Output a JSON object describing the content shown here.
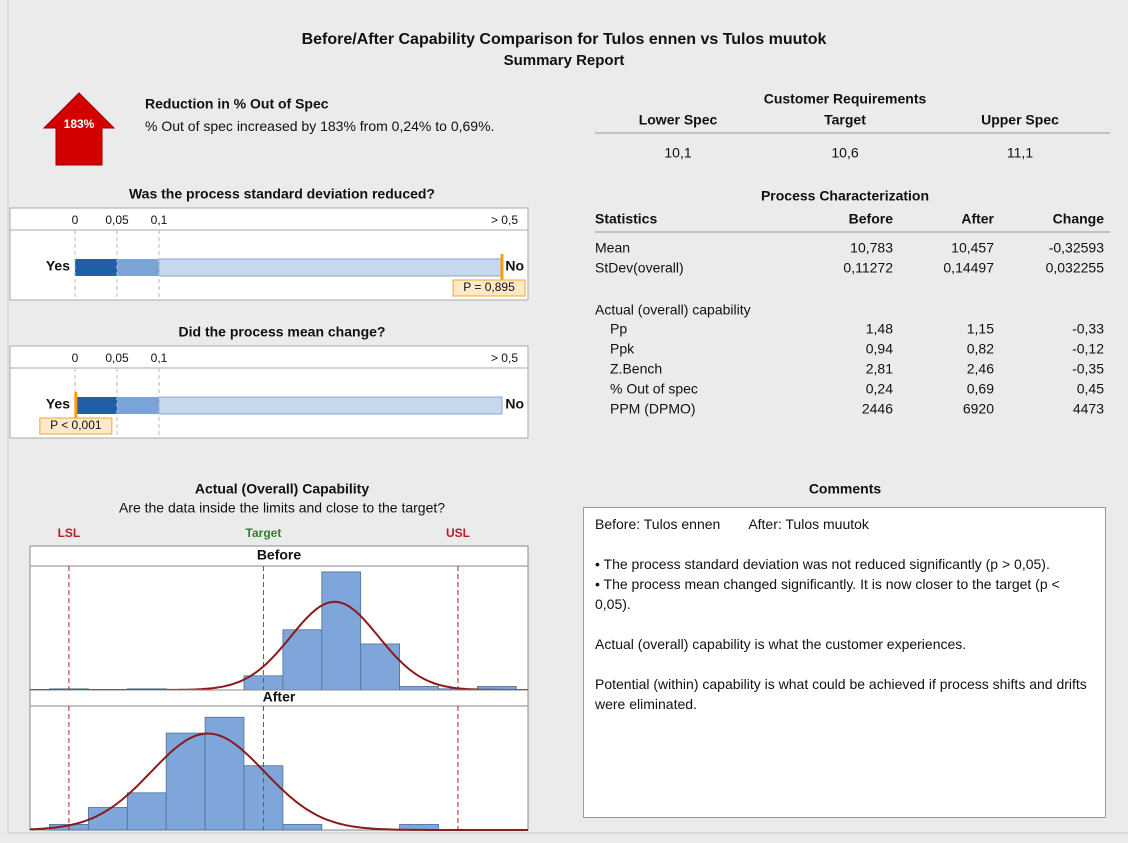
{
  "title": "Before/After Capability Comparison for Tulos ennen  vs Tulos muutok",
  "subtitle": "Summary Report",
  "reduction": {
    "badge": "183%",
    "heading": "Reduction in % Out of Spec",
    "text": "% Out of spec increased by 183% from 0,24% to 0,69%."
  },
  "requirements": {
    "title": "Customer Requirements",
    "headers": [
      "Lower Spec",
      "Target",
      "Upper Spec"
    ],
    "values": [
      "10,1",
      "10,6",
      "11,1"
    ]
  },
  "tests": [
    {
      "question": "Was the process standard deviation reduced?",
      "ticks": [
        0,
        {
          "value": 0.05,
          "label": "0,05"
        },
        {
          "value": 0.1,
          "label": "0,1"
        },
        {
          "value": 0.5,
          "label": "> 0,5"
        }
      ],
      "yes": "Yes",
      "no": "No",
      "p": {
        "value": 0.895,
        "label": "P = 0,895"
      }
    },
    {
      "question": "Did the process mean change?",
      "ticks": [
        0,
        {
          "value": 0.05,
          "label": "0,05"
        },
        {
          "value": 0.1,
          "label": "0,1"
        },
        {
          "value": 0.5,
          "label": "> 0,5"
        }
      ],
      "yes": "Yes",
      "no": "No",
      "p": {
        "value": 0.001,
        "label": "P < 0,001"
      }
    }
  ],
  "process": {
    "title": "Process Characterization",
    "header": [
      "Statistics",
      "Before",
      "After",
      "Change"
    ],
    "rows": [
      [
        "Mean",
        "10,783",
        "10,457",
        "-0,32593"
      ],
      [
        "StDev(overall)",
        "0,11272",
        "0,14497",
        "0,032255"
      ]
    ],
    "section": "Actual (overall) capability",
    "capability_rows": [
      [
        "Pp",
        "1,48",
        "1,15",
        "-0,33"
      ],
      [
        "Ppk",
        "0,94",
        "0,82",
        "-0,12"
      ],
      [
        "Z.Bench",
        "2,81",
        "2,46",
        "-0,35"
      ],
      [
        "% Out of spec",
        "0,24",
        "0,69",
        "0,45"
      ],
      [
        "PPM (DPMO)",
        "2446",
        "6920",
        "4473"
      ]
    ]
  },
  "comments": {
    "title": "Comments",
    "before": "Before: Tulos ennen",
    "after": "After: Tulos muutok",
    "bullets": [
      "• The process standard deviation was not reduced significantly (p > 0,05).",
      "• The process mean changed significantly. It is now closer to the target (p < 0,05)."
    ],
    "notes": [
      "Actual (overall) capability is what the customer experiences.",
      "Potential (within) capability is what could be achieved if process shifts and drifts were eliminated."
    ]
  },
  "chart_data": {
    "type": "histogram",
    "title": "Actual (Overall) Capability",
    "subtitle": "Are the data inside the limits and close to the target?",
    "xlim": [
      10.0,
      11.28
    ],
    "limits": [
      {
        "label": "LSL",
        "value": 10.1,
        "color": "#b22222"
      },
      {
        "label": "Target",
        "value": 10.6,
        "color": "#2e7d32"
      },
      {
        "label": "USL",
        "value": 11.1,
        "color": "#b22222"
      }
    ],
    "bins": [
      10.05,
      10.15,
      10.25,
      10.35,
      10.45,
      10.55,
      10.65,
      10.75,
      10.85,
      10.95,
      11.05,
      11.15,
      11.25
    ],
    "color": "#7ea6da",
    "curve_color": "#8b1a1a",
    "panels": [
      {
        "name": "Before",
        "values": [
          1,
          0,
          1,
          0,
          0,
          12,
          51,
          100,
          39,
          3,
          1,
          3
        ],
        "ylim": [
          0,
          105
        ],
        "fit": {
          "mean": 10.783,
          "sd": 0.11272
        }
      },
      {
        "name": "After",
        "values": [
          5,
          20,
          33,
          86,
          100,
          57,
          5,
          0,
          0,
          5,
          0,
          0
        ],
        "ylim": [
          0,
          110
        ],
        "fit": {
          "mean": 10.457,
          "sd": 0.14497
        }
      }
    ]
  }
}
